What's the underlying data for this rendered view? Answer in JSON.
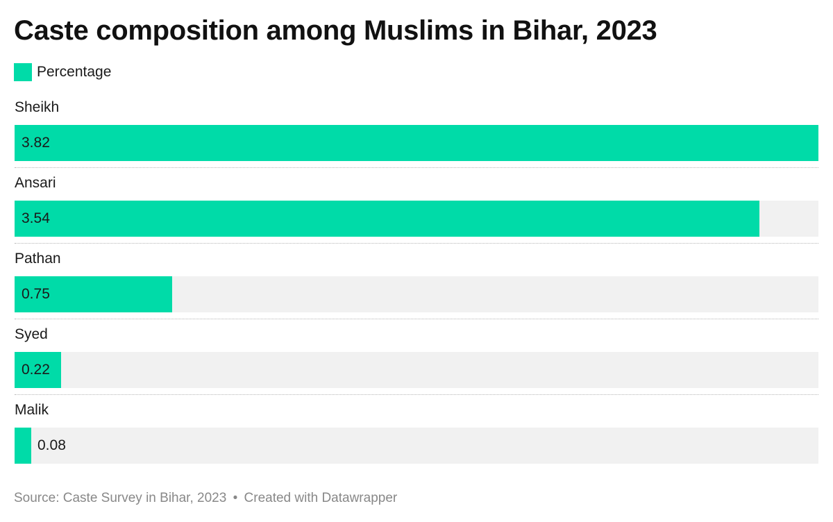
{
  "header": {
    "title": "Caste composition among Muslims in Bihar, 2023"
  },
  "legend": {
    "items": [
      {
        "label": "Percentage",
        "color": "#00dba8"
      }
    ]
  },
  "footer": {
    "source": "Source: Caste Survey in Bihar, 2023",
    "separator": "•",
    "credit": "Created with Datawrapper"
  },
  "chart_data": {
    "type": "bar",
    "orientation": "horizontal",
    "title": "Caste composition among Muslims in Bihar, 2023",
    "categories": [
      "Sheikh",
      "Ansari",
      "Pathan",
      "Syed",
      "Malik"
    ],
    "series": [
      {
        "name": "Percentage",
        "color": "#00dba8",
        "values": [
          3.82,
          3.54,
          0.75,
          0.22,
          0.08
        ]
      }
    ],
    "value_labels": [
      "3.82",
      "3.54",
      "0.75",
      "0.22",
      "0.08"
    ],
    "xlim": [
      0,
      3.82
    ],
    "grid": false,
    "legend_position": "top-left",
    "track_color": "#f1f1f1"
  }
}
